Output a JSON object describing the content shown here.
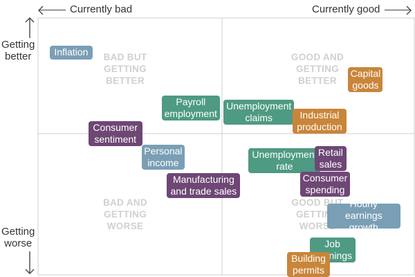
{
  "chart_data": {
    "type": "scatter",
    "x_axis": {
      "left_label": "Currently bad",
      "right_label": "Currently good"
    },
    "y_axis": {
      "top_label": "Getting\nbetter",
      "bottom_label": "Getting\nworse"
    },
    "quadrants": {
      "top_left": "BAD BUT\nGETTING\nBETTER",
      "top_right": "GOOD AND\nGETTING\nBETTER",
      "bottom_left": "BAD AND\nGETTING\nWORSE",
      "bottom_right": "GOOD BUT\nGETTING\nWORSE"
    },
    "categories": [
      {
        "name": "blue",
        "color": "#7a9fb5"
      },
      {
        "name": "purple",
        "color": "#6e4775"
      },
      {
        "name": "green",
        "color": "#4e9a82"
      },
      {
        "name": "orange",
        "color": "#c9853a"
      }
    ],
    "points": [
      {
        "label": "Inflation",
        "cat": "blue",
        "x": -0.82,
        "y": 0.72
      },
      {
        "label": "Capital\ngoods",
        "cat": "orange",
        "x": 0.78,
        "y": 0.48
      },
      {
        "label": "Payroll\nemployment",
        "cat": "green",
        "x": -0.17,
        "y": 0.23
      },
      {
        "label": "Unemployment\nclaims",
        "cat": "green",
        "x": 0.2,
        "y": 0.19
      },
      {
        "label": "Industrial\nproduction",
        "cat": "orange",
        "x": 0.53,
        "y": 0.11
      },
      {
        "label": "Consumer\nsentiment",
        "cat": "purple",
        "x": -0.58,
        "y": 0.0
      },
      {
        "label": "Personal\nincome",
        "cat": "blue",
        "x": -0.32,
        "y": -0.21
      },
      {
        "label": "Unemployment\nrate",
        "cat": "green",
        "x": 0.34,
        "y": -0.24
      },
      {
        "label": "Retail\nsales",
        "cat": "purple",
        "x": 0.59,
        "y": -0.22
      },
      {
        "label": "Manufacturing\nand trade sales",
        "cat": "purple",
        "x": -0.1,
        "y": -0.46
      },
      {
        "label": "Consumer\nspending",
        "cat": "purple",
        "x": 0.56,
        "y": -0.45
      },
      {
        "label": "Hourly\nearnings growth",
        "cat": "blue",
        "x": 0.77,
        "y": -0.73
      },
      {
        "label": "Job\nopenings",
        "cat": "green",
        "x": 0.6,
        "y": -1.03
      },
      {
        "label": "Building\npermits",
        "cat": "orange",
        "x": 0.47,
        "y": -1.35
      }
    ]
  }
}
